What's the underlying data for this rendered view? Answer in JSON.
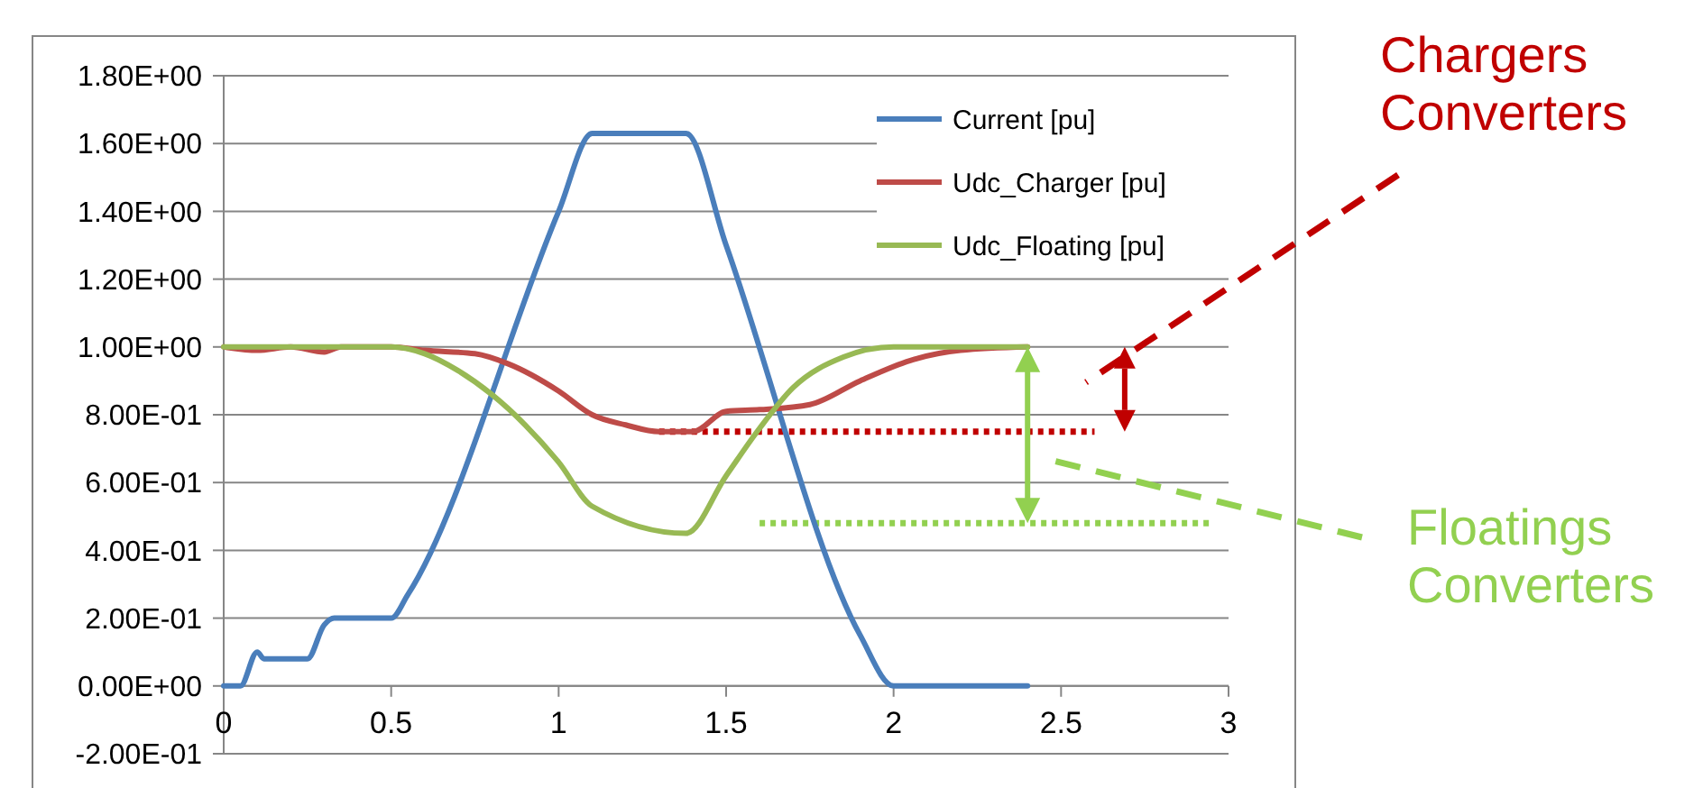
{
  "chart_data": {
    "type": "line",
    "x": [
      0,
      0.05,
      0.1,
      0.12,
      0.25,
      0.3,
      0.33,
      0.5,
      0.55,
      1.0,
      1.1,
      1.38,
      1.5,
      1.9,
      2.0,
      2.4
    ],
    "series": [
      {
        "name": "Current [pu]",
        "color": "#4a7ebb",
        "values": [
          0,
          0,
          0.1,
          0.08,
          0.08,
          0.18,
          0.2,
          0.2,
          0.27,
          1.4,
          1.63,
          1.63,
          1.3,
          0.15,
          0,
          0
        ]
      },
      {
        "name": "Udc_Charger [pu]",
        "color": "#be4b48",
        "x": [
          0,
          0.1,
          0.2,
          0.3,
          0.35,
          0.5,
          0.6,
          0.75,
          0.85,
          1.0,
          1.1,
          1.2,
          1.3,
          1.4,
          1.5,
          1.6,
          1.75,
          1.9,
          2.05,
          2.2,
          2.4
        ],
        "values": [
          1,
          0.99,
          1,
          0.985,
          1,
          1,
          0.99,
          0.98,
          0.95,
          0.87,
          0.8,
          0.77,
          0.75,
          0.75,
          0.81,
          0.815,
          0.83,
          0.9,
          0.96,
          0.99,
          1
        ]
      },
      {
        "name": "Udc_Floating [pu]",
        "color": "#98b954",
        "x": [
          0,
          0.5,
          0.6,
          0.7,
          0.8,
          0.9,
          1.0,
          1.1,
          1.38,
          1.5,
          1.6,
          1.7,
          1.85,
          2.0,
          2.4
        ],
        "values": [
          1,
          1,
          0.98,
          0.93,
          0.86,
          0.77,
          0.66,
          0.53,
          0.45,
          0.62,
          0.76,
          0.88,
          0.97,
          1,
          1
        ]
      }
    ],
    "xlim": [
      0,
      3
    ],
    "xticks": [
      0,
      0.5,
      1,
      1.5,
      2,
      2.5,
      3
    ],
    "ylim": [
      -0.2,
      1.8
    ],
    "yticks": [
      {
        "value": -0.2,
        "label": "-2.00E-01"
      },
      {
        "value": 0,
        "label": "0.00E+00"
      },
      {
        "value": 0.2,
        "label": "2.00E-01"
      },
      {
        "value": 0.4,
        "label": "4.00E-01"
      },
      {
        "value": 0.6,
        "label": "6.00E-01"
      },
      {
        "value": 0.8,
        "label": "8.00E-01"
      },
      {
        "value": 1,
        "label": "1.00E+00"
      },
      {
        "value": 1.2,
        "label": "1.20E+00"
      },
      {
        "value": 1.4,
        "label": "1.40E+00"
      },
      {
        "value": 1.6,
        "label": "1.60E+00"
      },
      {
        "value": 1.8,
        "label": "1.80E+00"
      }
    ],
    "ref_lines": [
      {
        "axis": "y",
        "value": 0.75,
        "color": "#c00000",
        "line_style": "dotted"
      },
      {
        "axis": "y",
        "value": 0.48,
        "color": "#92d050",
        "line_style": "dotted"
      }
    ],
    "annotations": [
      "Chargers\nConverters",
      "Floatings\nConverters"
    ],
    "grid": "y",
    "legend": "top right",
    "marker": "none",
    "line_style": "solid"
  }
}
